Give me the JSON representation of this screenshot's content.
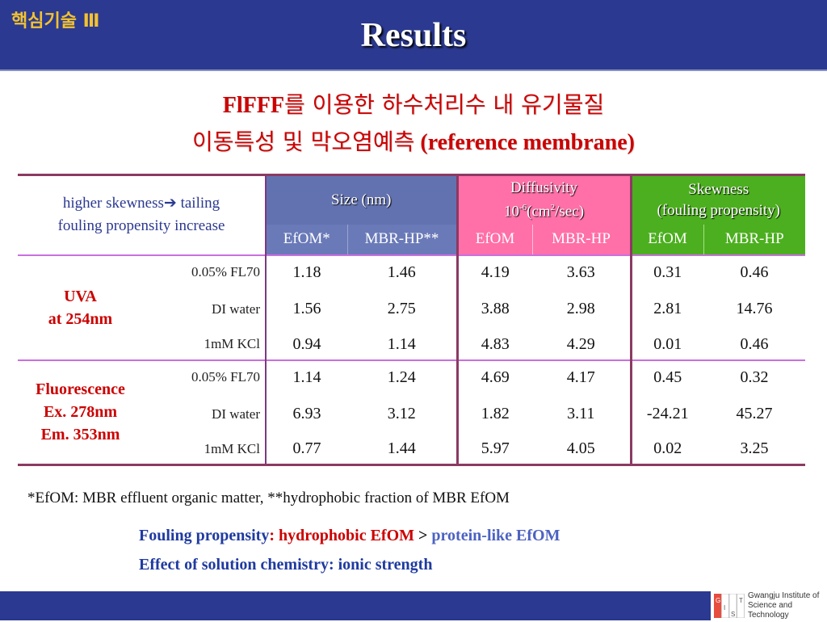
{
  "header": {
    "section_tag": "핵심기술 Ⅲ",
    "title": "Results"
  },
  "subtitle": {
    "line1_bold": "FlFFF",
    "line1_ko": "를 이용한 하수처리수 내 유기물질",
    "line2_ko": "이동특성 및 막오염예측",
    "line2_en": " (reference membrane)"
  },
  "table": {
    "note_line1": "higher skewness",
    "note_arrow": "➔",
    "note_line1b": " tailing",
    "note_line2": "fouling propensity increase",
    "heads": {
      "size": "Size (nm)",
      "diff_line1": "Diffusivity",
      "diff_line2_a": "10",
      "diff_line2_sup": "-6",
      "diff_line2_b": "(cm",
      "diff_line2_sup2": "2",
      "diff_line2_c": "/sec)",
      "skew_line1": "Skewness",
      "skew_line2": "(fouling propensity)"
    },
    "subheads": [
      "EfOM*",
      "MBR-HP**",
      "EfOM",
      "MBR-HP",
      "EfOM",
      "MBR-HP"
    ],
    "groups": [
      {
        "label_lines": [
          "UVA",
          "at 254nm"
        ],
        "rows": [
          {
            "cond": "0.05% FL70",
            "v": [
              "1.18",
              "1.46",
              "4.19",
              "3.63",
              "0.31",
              "0.46"
            ]
          },
          {
            "cond": "DI water",
            "v": [
              "1.56",
              "2.75",
              "3.88",
              "2.98",
              "2.81",
              "14.76"
            ]
          },
          {
            "cond": "1mM KCl",
            "v": [
              "0.94",
              "1.14",
              "4.83",
              "4.29",
              "0.01",
              "0.46"
            ]
          }
        ]
      },
      {
        "label_lines": [
          "Fluorescence",
          "Ex. 278nm",
          "Em. 353nm"
        ],
        "rows": [
          {
            "cond": "0.05% FL70",
            "v": [
              "1.14",
              "1.24",
              "4.69",
              "4.17",
              "0.45",
              "0.32"
            ]
          },
          {
            "cond": "DI water",
            "v": [
              "6.93",
              "3.12",
              "1.82",
              "3.11",
              "-24.21",
              "45.27"
            ]
          },
          {
            "cond": "1mM KCl",
            "v": [
              "0.77",
              "1.44",
              "5.97",
              "4.05",
              "0.02",
              "3.25"
            ]
          }
        ]
      }
    ]
  },
  "footnote": "*EfOM: MBR effluent organic matter, **hydrophobic fraction of MBR EfOM",
  "conclusions": {
    "line1_label": "Fouling propensity",
    "line1_colon": ": ",
    "line1_hl": "hydrophobic EfOM",
    "line1_gt": " > ",
    "line1_pl": "protein-like EfOM",
    "line2": "Effect of solution chemistry: ionic strength"
  },
  "logo": {
    "letters": [
      "G",
      "I",
      "S",
      "T"
    ],
    "name_line1": "Gwangju Institute of",
    "name_line2": "Science and Technology"
  },
  "colors": {
    "header_bg": "#2b3990",
    "accent_red": "#cc0000",
    "size_head": "#6272b0",
    "diff_head": "#ff6fa8",
    "skew_head": "#4caf1f"
  }
}
